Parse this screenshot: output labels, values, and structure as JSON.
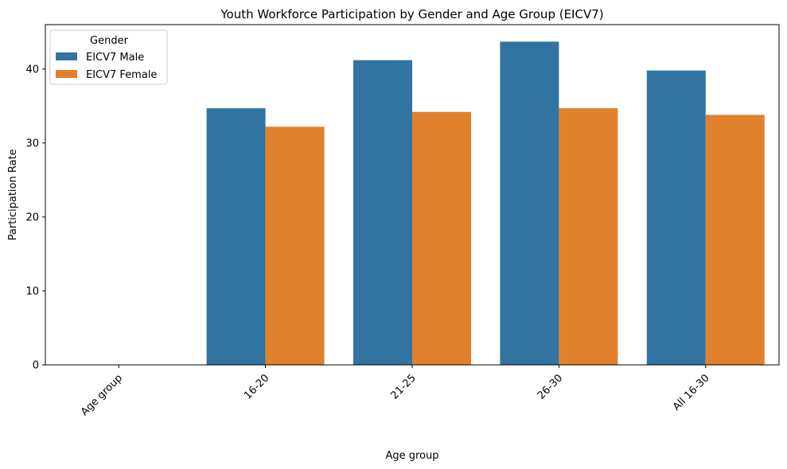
{
  "chart_data": {
    "type": "bar",
    "title": "Youth Workforce Participation by Gender and Age Group (EICV7)",
    "xlabel": "Age group",
    "ylabel": "Participation Rate",
    "categories": [
      "Age group",
      "16-20",
      "21-25",
      "26-30",
      "All 16-30"
    ],
    "series": [
      {
        "name": "EICV7 Male",
        "color": "#3274a1",
        "values": [
          null,
          34.7,
          41.2,
          43.7,
          39.8
        ]
      },
      {
        "name": "EICV7 Female",
        "color": "#e1812c",
        "values": [
          null,
          32.2,
          34.2,
          34.7,
          33.8
        ]
      }
    ],
    "ylim": [
      0,
      46
    ],
    "yticks": [
      0,
      10,
      20,
      30,
      40
    ],
    "legend": {
      "title": "Gender",
      "position": "top-left"
    },
    "grid": false
  }
}
